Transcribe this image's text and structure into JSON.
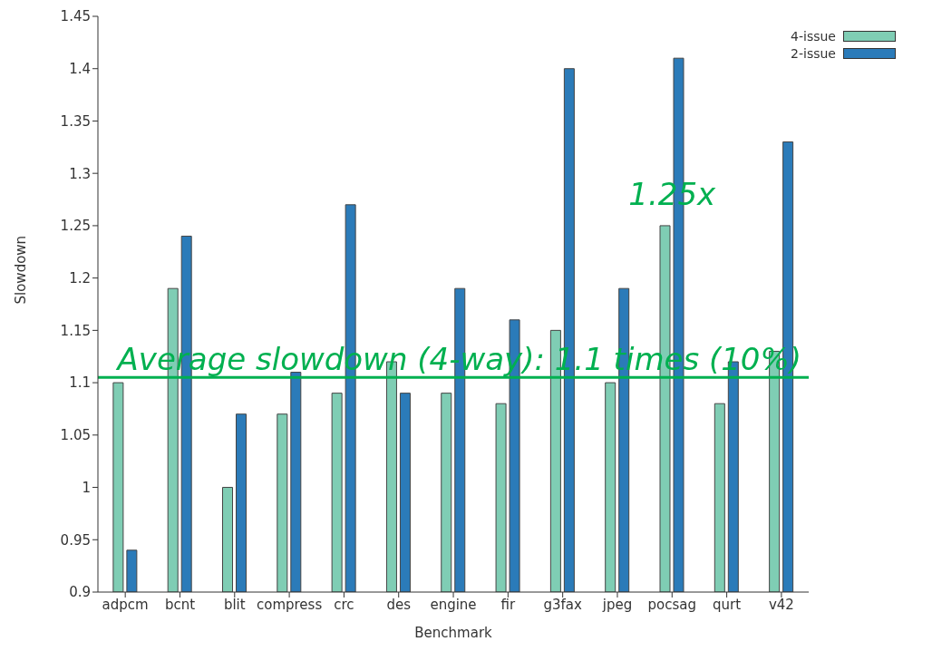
{
  "chart_data": {
    "type": "bar",
    "xlabel": "Benchmark",
    "ylabel": "Slowdown",
    "categories": [
      "adpcm",
      "bcnt",
      "blit",
      "compress",
      "crc",
      "des",
      "engine",
      "fir",
      "g3fax",
      "jpeg",
      "pocsag",
      "qurt",
      "v42"
    ],
    "series": [
      {
        "name": "4-issue",
        "color": "#7fcdb4",
        "values": [
          1.1,
          1.19,
          1.0,
          1.07,
          1.09,
          1.12,
          1.09,
          1.08,
          1.15,
          1.1,
          1.25,
          1.08,
          1.13
        ]
      },
      {
        "name": "2-issue",
        "color": "#2b7bb9",
        "values": [
          0.94,
          1.24,
          1.07,
          1.11,
          1.27,
          1.09,
          1.19,
          1.16,
          1.4,
          1.19,
          1.41,
          1.12,
          1.33
        ]
      }
    ],
    "ylim": [
      0.9,
      1.45
    ],
    "yticks": [
      0.9,
      0.95,
      1,
      1.05,
      1.1,
      1.15,
      1.2,
      1.25,
      1.3,
      1.35,
      1.4,
      1.45
    ],
    "grid": false,
    "legend": "top right",
    "ref_lines": [
      {
        "axis": "y",
        "value": 1.105,
        "label": "Average slowdown (4-way): 1.1 times (10%)",
        "color": "#00b050"
      }
    ],
    "annotations": [
      {
        "text": "1.25x",
        "x": "pocsag",
        "y": 1.28
      }
    ]
  }
}
